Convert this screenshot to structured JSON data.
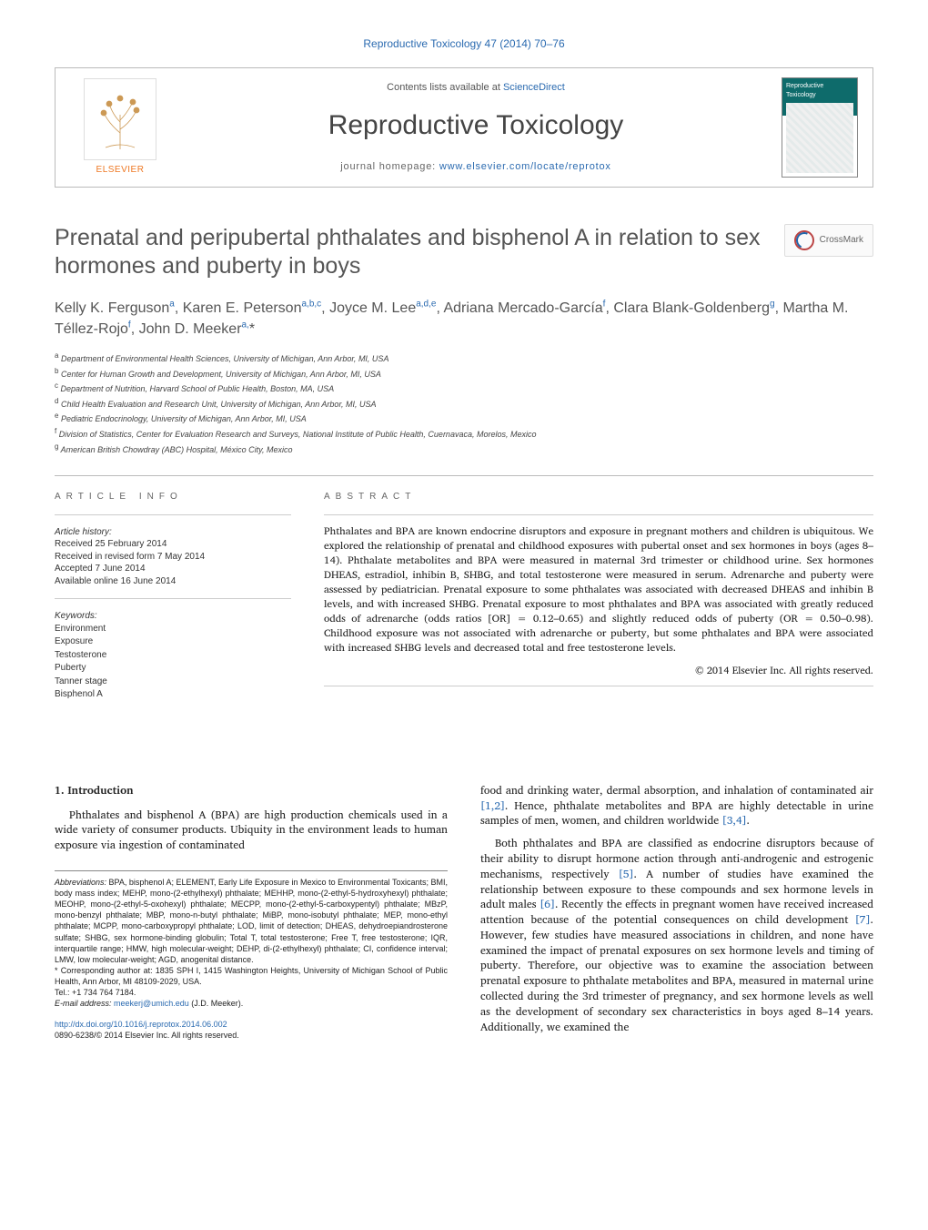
{
  "journal": {
    "top_citation": "Reproductive Toxicology 47 (2014) 70–76",
    "contents_line_prefix": "Contents lists available at ",
    "contents_line_link": "ScienceDirect",
    "name": "Reproductive Toxicology",
    "homepage_prefix": "journal homepage: ",
    "homepage_url": "www.elsevier.com/locate/reprotox",
    "elsevier_label": "ELSEVIER",
    "cover_mini_title": "Reproductive Toxicology"
  },
  "crossmark_label": "CrossMark",
  "article": {
    "title": "Prenatal and peripubertal phthalates and bisphenol A in relation to sex hormones and puberty in boys",
    "authors_html": "Kelly K. Ferguson<sup>a</sup>, Karen E. Peterson<sup>a,b,c</sup>, Joyce M. Lee<sup>a,d,e</sup>, Adriana Mercado-García<sup>f</sup>, Clara Blank-Goldenberg<sup>g</sup>, Martha M. Téllez-Rojo<sup>f</sup>, John D. Meeker<sup>a,</sup>*",
    "affiliations": [
      {
        "sup": "a",
        "text": "Department of Environmental Health Sciences, University of Michigan, Ann Arbor, MI, USA"
      },
      {
        "sup": "b",
        "text": "Center for Human Growth and Development, University of Michigan, Ann Arbor, MI, USA"
      },
      {
        "sup": "c",
        "text": "Department of Nutrition, Harvard School of Public Health, Boston, MA, USA"
      },
      {
        "sup": "d",
        "text": "Child Health Evaluation and Research Unit, University of Michigan, Ann Arbor, MI, USA"
      },
      {
        "sup": "e",
        "text": "Pediatric Endocrinology, University of Michigan, Ann Arbor, MI, USA"
      },
      {
        "sup": "f",
        "text": "Division of Statistics, Center for Evaluation Research and Surveys, National Institute of Public Health, Cuernavaca, Morelos, Mexico"
      },
      {
        "sup": "g",
        "text": "American British Chowdray (ABC) Hospital, México City, Mexico"
      }
    ]
  },
  "info": {
    "heading": "ARTICLE INFO",
    "history_label": "Article history:",
    "history_lines": [
      "Received 25 February 2014",
      "Received in revised form 7 May 2014",
      "Accepted 7 June 2014",
      "Available online 16 June 2014"
    ],
    "keywords_label": "Keywords:",
    "keywords": [
      "Environment",
      "Exposure",
      "Testosterone",
      "Puberty",
      "Tanner stage",
      "Bisphenol A"
    ]
  },
  "abstract": {
    "heading": "ABSTRACT",
    "body": "Phthalates and BPA are known endocrine disruptors and exposure in pregnant mothers and children is ubiquitous. We explored the relationship of prenatal and childhood exposures with pubertal onset and sex hormones in boys (ages 8–14). Phthalate metabolites and BPA were measured in maternal 3rd trimester or childhood urine. Sex hormones DHEAS, estradiol, inhibin B, SHBG, and total testosterone were measured in serum. Adrenarche and puberty were assessed by pediatrician. Prenatal exposure to some phthalates was associated with decreased DHEAS and inhibin B levels, and with increased SHBG. Prenatal exposure to most phthalates and BPA was associated with greatly reduced odds of adrenarche (odds ratios [OR] = 0.12–0.65) and slightly reduced odds of puberty (OR = 0.50–0.98). Childhood exposure was not associated with adrenarche or puberty, but some phthalates and BPA were associated with increased SHBG levels and decreased total and free testosterone levels.",
    "copyright": "© 2014 Elsevier Inc. All rights reserved."
  },
  "body": {
    "section1_title": "1.  Introduction",
    "col1_p1": "Phthalates and bisphenol A (BPA) are high production chemicals used in a wide variety of consumer products. Ubiquity in the environment leads to human exposure via ingestion of contaminated",
    "col2_p1_a": "food and drinking water, dermal absorption, and inhalation of contaminated air ",
    "col2_p1_ref1": "[1,2]",
    "col2_p1_b": ". Hence, phthalate metabolites and BPA are highly detectable in urine samples of men, women, and children worldwide ",
    "col2_p1_ref2": "[3,4]",
    "col2_p1_c": ".",
    "col2_p2_a": "Both phthalates and BPA are classified as endocrine disruptors because of their ability to disrupt hormone action through anti-androgenic and estrogenic mechanisms, respectively ",
    "col2_p2_ref1": "[5]",
    "col2_p2_b": ". A number of studies have examined the relationship between exposure to these compounds and sex hormone levels in adult males ",
    "col2_p2_ref2": "[6]",
    "col2_p2_c": ". Recently the effects in pregnant women have received increased attention because of the potential consequences on child development ",
    "col2_p2_ref3": "[7]",
    "col2_p2_d": ". However, few studies have measured associations in children, and none have examined the impact of prenatal exposures on sex hormone levels and timing of puberty. Therefore, our objective was to examine the association between prenatal exposure to phthalate metabolites and BPA, measured in maternal urine collected during the 3rd trimester of pregnancy, and sex hormone levels as well as the development of secondary sex characteristics in boys aged 8–14 years. Additionally, we examined the"
  },
  "footnotes": {
    "abbrev_label": "Abbreviations:",
    "abbrev_text": " BPA, bisphenol A; ELEMENT, Early Life Exposure in Mexico to Environmental Toxicants; BMI, body mass index; MEHP, mono-(2-ethylhexyl) phthalate; MEHHP, mono-(2-ethyl-5-hydroxyhexyl) phthalate; MEOHP, mono-(2-ethyl-5-oxohexyl) phthalate; MECPP, mono-(2-ethyl-5-carboxypentyl) phthalate; MBzP, mono-benzyl phthalate; MBP, mono-n-butyl phthalate; MiBP, mono-isobutyl phthalate; MEP, mono-ethyl phthalate; MCPP, mono-carboxypropyl phthalate; LOD, limit of detection; DHEAS, dehydroepiandrosterone sulfate; SHBG, sex hormone-binding globulin; Total T, total testosterone; Free T, free testosterone; IQR, interquartile range; HMW, high molecular-weight; DEHP, di-(2-ethylhexyl) phthalate; CI, confidence interval; LMW, low molecular-weight; AGD, anogenital distance.",
    "corresponding_symbol": "*",
    "corresponding_text": " Corresponding author at: 1835 SPH I, 1415 Washington Heights, University of Michigan School of Public Health, Ann Arbor, MI 48109-2029, USA.",
    "tel_line": "Tel.: +1 734 764 7184.",
    "email_label": "E-mail address:",
    "email": "meekerj@umich.edu",
    "email_person": " (J.D. Meeker)."
  },
  "doi": {
    "url": "http://dx.doi.org/10.1016/j.reprotox.2014.06.002",
    "issn_line": "0890-6238/© 2014 Elsevier Inc. All rights reserved."
  },
  "colors": {
    "link": "#2a6ab0",
    "text": "#222222",
    "heading_grey": "#555555",
    "elsevier_orange": "#ee7722",
    "rule": "#bbbbbb"
  }
}
